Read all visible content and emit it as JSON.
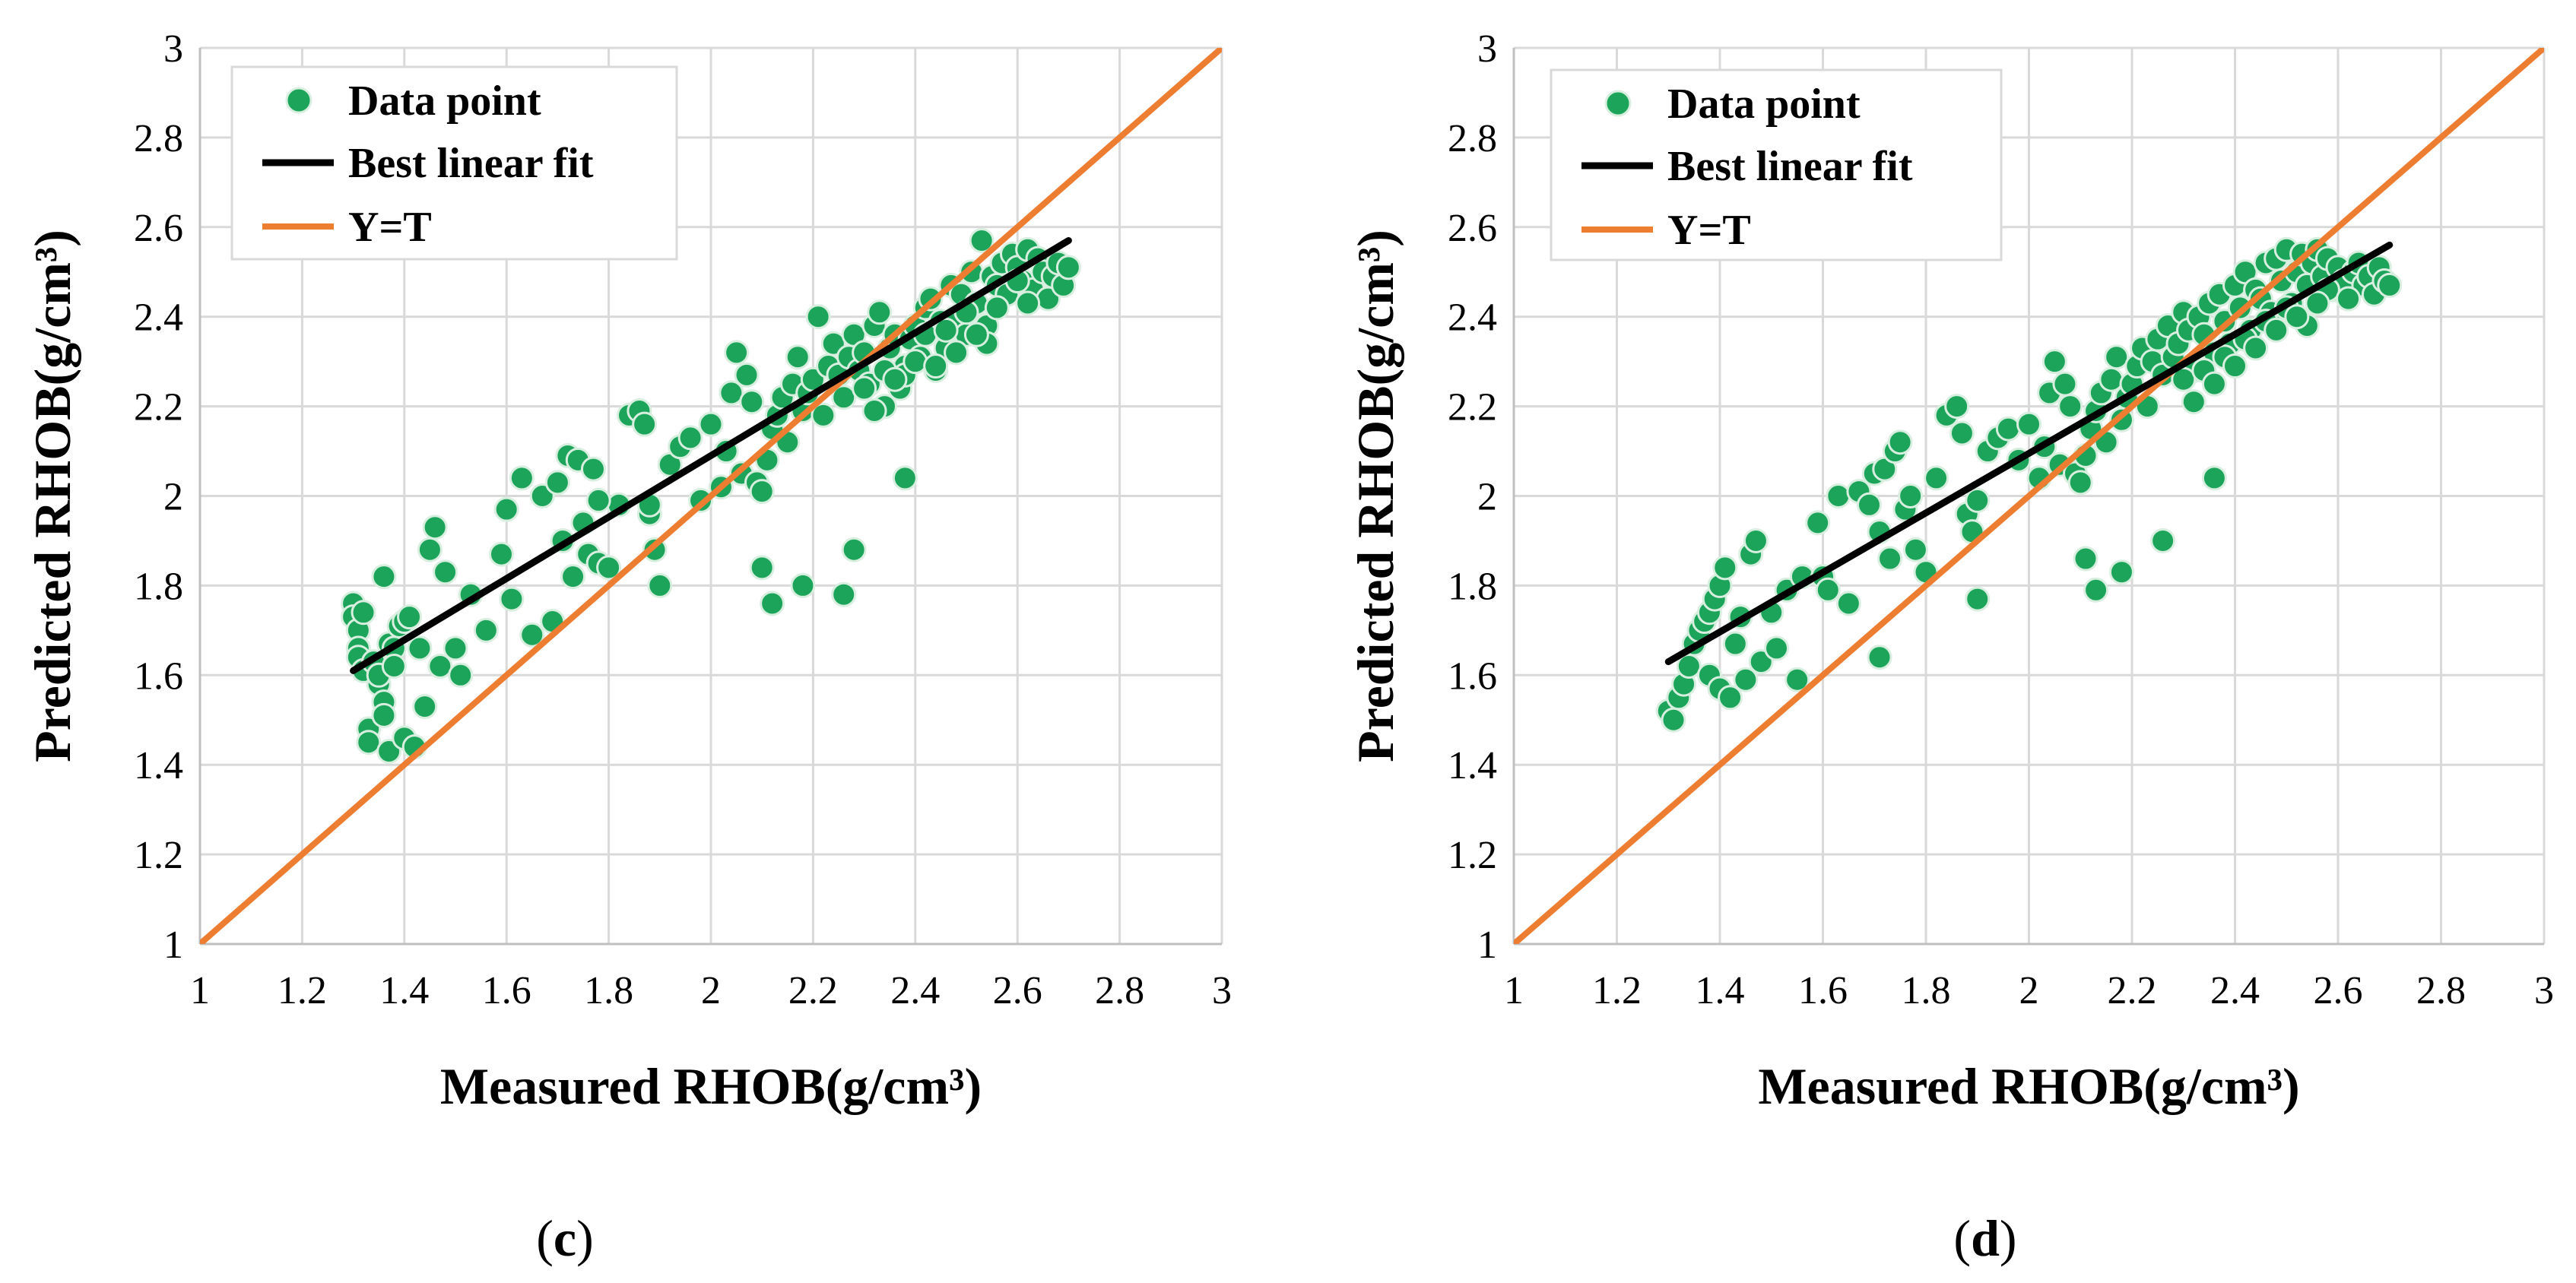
{
  "colors": {
    "points": "#1ca55a",
    "point_edge": "#d8efe0",
    "fit": "#000000",
    "identity": "#ed7d31",
    "grid": "#d9d9d9",
    "axis": "#bfbfbf"
  },
  "chart_data": [
    {
      "type": "scatter",
      "panel_label": "c",
      "xlabel": "Measured RHOB(g/cm³)",
      "ylabel": "Predicted RHOB(g/cm³)",
      "xlim": [
        1,
        3
      ],
      "ylim": [
        1,
        3
      ],
      "xticks": [
        "1",
        "1.2",
        "1.4",
        "1.6",
        "1.8",
        "2",
        "2.2",
        "2.4",
        "2.6",
        "2.8",
        "3"
      ],
      "yticks": [
        "1",
        "1.2",
        "1.4",
        "1.6",
        "1.8",
        "2",
        "2.2",
        "2.4",
        "2.6",
        "2.8",
        "3"
      ],
      "legend": [
        "Data point",
        "Best linear fit",
        "Y=T"
      ],
      "fit_line": {
        "x": [
          1.3,
          2.7
        ],
        "y": [
          1.61,
          2.57
        ]
      },
      "identity_line": {
        "x": [
          1,
          3
        ],
        "y": [
          1,
          3
        ]
      },
      "series": [
        {
          "name": "Data point",
          "x": [
            1.3,
            1.3,
            1.31,
            1.31,
            1.31,
            1.32,
            1.32,
            1.33,
            1.33,
            1.34,
            1.35,
            1.35,
            1.36,
            1.36,
            1.36,
            1.37,
            1.37,
            1.38,
            1.38,
            1.39,
            1.4,
            1.4,
            1.41,
            1.42,
            1.43,
            1.44,
            1.45,
            1.46,
            1.47,
            1.48,
            1.5,
            1.51,
            1.53,
            1.56,
            1.59,
            1.6,
            1.61,
            1.63,
            1.65,
            1.67,
            1.69,
            1.7,
            1.71,
            1.72,
            1.73,
            1.74,
            1.75,
            1.76,
            1.77,
            1.78,
            1.8,
            1.82,
            1.84,
            1.86,
            1.87,
            1.88,
            1.89,
            1.9,
            1.92,
            1.94,
            1.96,
            1.98,
            2.0,
            2.02,
            2.03,
            2.04,
            2.05,
            2.06,
            2.07,
            2.08,
            2.09,
            2.1,
            2.11,
            2.12,
            2.13,
            2.14,
            2.15,
            2.16,
            2.17,
            2.18,
            2.19,
            2.2,
            2.21,
            2.22,
            2.23,
            2.24,
            2.25,
            2.26,
            2.27,
            2.28,
            2.29,
            2.3,
            2.31,
            2.32,
            2.33,
            2.34,
            2.35,
            2.36,
            2.36,
            2.37,
            2.38,
            2.39,
            2.4,
            2.41,
            2.42,
            2.43,
            2.44,
            2.45,
            2.46,
            2.47,
            2.48,
            2.49,
            2.5,
            2.51,
            2.52,
            2.53,
            2.54,
            2.55,
            2.56,
            2.57,
            2.58,
            2.59,
            2.6,
            2.61,
            2.62,
            2.63,
            2.64,
            2.65,
            2.66,
            2.67,
            2.68,
            2.69,
            2.7,
            2.3,
            2.34,
            2.38,
            2.42,
            2.46,
            2.5,
            2.54,
            2.58,
            2.62,
            2.32,
            2.36,
            2.4,
            2.44,
            2.48,
            2.52,
            2.56,
            2.6,
            2.28,
            2.26,
            2.38,
            2.12,
            2.18,
            2.1,
            1.88,
            1.78
          ],
          "y": [
            1.76,
            1.73,
            1.7,
            1.66,
            1.64,
            1.61,
            1.74,
            1.48,
            1.45,
            1.63,
            1.58,
            1.6,
            1.54,
            1.51,
            1.82,
            1.43,
            1.67,
            1.66,
            1.62,
            1.71,
            1.46,
            1.72,
            1.73,
            1.44,
            1.66,
            1.53,
            1.88,
            1.93,
            1.62,
            1.83,
            1.66,
            1.6,
            1.78,
            1.7,
            1.87,
            1.97,
            1.77,
            2.04,
            1.69,
            2.0,
            1.72,
            2.03,
            1.9,
            2.09,
            1.82,
            2.08,
            1.94,
            1.87,
            2.06,
            1.85,
            1.84,
            1.98,
            2.18,
            2.19,
            2.16,
            1.96,
            1.88,
            1.8,
            2.07,
            2.11,
            2.13,
            1.99,
            2.16,
            2.02,
            2.1,
            2.23,
            2.32,
            2.05,
            2.27,
            2.21,
            2.03,
            2.01,
            2.08,
            2.15,
            2.18,
            2.22,
            2.12,
            2.25,
            2.31,
            2.19,
            2.23,
            2.26,
            2.4,
            2.18,
            2.29,
            2.34,
            2.27,
            2.22,
            2.31,
            2.36,
            2.28,
            2.32,
            2.25,
            2.38,
            2.41,
            2.2,
            2.33,
            2.36,
            2.26,
            2.24,
            2.29,
            2.35,
            2.38,
            2.31,
            2.42,
            2.44,
            2.28,
            2.39,
            2.33,
            2.47,
            2.4,
            2.45,
            2.36,
            2.5,
            2.43,
            2.57,
            2.38,
            2.49,
            2.47,
            2.52,
            2.45,
            2.54,
            2.51,
            2.48,
            2.55,
            2.46,
            2.53,
            2.5,
            2.44,
            2.49,
            2.52,
            2.47,
            2.51,
            2.24,
            2.28,
            2.27,
            2.36,
            2.37,
            2.41,
            2.34,
            2.45,
            2.43,
            2.19,
            2.26,
            2.3,
            2.29,
            2.32,
            2.36,
            2.42,
            2.48,
            1.88,
            1.78,
            2.04,
            1.76,
            1.8,
            1.84,
            1.98,
            1.99
          ]
        }
      ]
    },
    {
      "type": "scatter",
      "panel_label": "d",
      "xlabel": "Measured RHOB(g/cm³)",
      "ylabel": "Predicted RHOB(g/cm³)",
      "xlim": [
        1,
        3
      ],
      "ylim": [
        1,
        3
      ],
      "xticks": [
        "1",
        "1.2",
        "1.4",
        "1.6",
        "1.8",
        "2",
        "2.2",
        "2.4",
        "2.6",
        "2.8",
        "3"
      ],
      "yticks": [
        "1",
        "1.2",
        "1.4",
        "1.6",
        "1.8",
        "2",
        "2.2",
        "2.4",
        "2.6",
        "2.8",
        "3"
      ],
      "legend": [
        "Data point",
        "Best linear fit",
        "Y=T"
      ],
      "fit_line": {
        "x": [
          1.3,
          2.7
        ],
        "y": [
          1.63,
          2.56
        ]
      },
      "identity_line": {
        "x": [
          1,
          3
        ],
        "y": [
          1,
          3
        ]
      },
      "series": [
        {
          "name": "Data point",
          "x": [
            1.3,
            1.31,
            1.32,
            1.33,
            1.34,
            1.35,
            1.36,
            1.37,
            1.38,
            1.38,
            1.39,
            1.4,
            1.4,
            1.41,
            1.42,
            1.43,
            1.44,
            1.45,
            1.46,
            1.47,
            1.48,
            1.5,
            1.51,
            1.53,
            1.56,
            1.59,
            1.6,
            1.61,
            1.63,
            1.65,
            1.67,
            1.69,
            1.7,
            1.71,
            1.72,
            1.73,
            1.74,
            1.75,
            1.76,
            1.77,
            1.78,
            1.8,
            1.82,
            1.84,
            1.86,
            1.87,
            1.88,
            1.89,
            1.9,
            1.92,
            1.94,
            1.96,
            1.98,
            2.0,
            2.02,
            2.03,
            2.04,
            2.05,
            2.06,
            2.07,
            2.08,
            2.09,
            2.1,
            2.11,
            2.12,
            2.13,
            2.14,
            2.15,
            2.16,
            2.17,
            2.18,
            2.19,
            2.2,
            2.21,
            2.22,
            2.23,
            2.24,
            2.25,
            2.26,
            2.27,
            2.28,
            2.29,
            2.3,
            2.31,
            2.32,
            2.33,
            2.34,
            2.35,
            2.36,
            2.37,
            2.38,
            2.39,
            2.4,
            2.41,
            2.42,
            2.43,
            2.44,
            2.45,
            2.46,
            2.47,
            2.48,
            2.49,
            2.5,
            2.51,
            2.52,
            2.53,
            2.54,
            2.55,
            2.56,
            2.57,
            2.58,
            2.59,
            2.6,
            2.61,
            2.62,
            2.63,
            2.64,
            2.65,
            2.66,
            2.67,
            2.68,
            2.69,
            2.7,
            2.3,
            2.34,
            2.38,
            2.42,
            2.46,
            2.5,
            2.54,
            2.58,
            2.62,
            2.32,
            2.36,
            2.4,
            2.44,
            2.48,
            2.52,
            2.56,
            2.36,
            2.26,
            2.13,
            2.18,
            2.11,
            1.71,
            1.55,
            1.9
          ],
          "y": [
            1.52,
            1.5,
            1.55,
            1.58,
            1.62,
            1.67,
            1.7,
            1.72,
            1.6,
            1.74,
            1.77,
            1.8,
            1.57,
            1.84,
            1.55,
            1.67,
            1.73,
            1.59,
            1.87,
            1.9,
            1.63,
            1.74,
            1.66,
            1.79,
            1.82,
            1.94,
            1.82,
            1.79,
            2.0,
            1.76,
            2.01,
            1.98,
            2.05,
            1.92,
            2.06,
            1.86,
            2.1,
            2.12,
            1.97,
            2.0,
            1.88,
            1.83,
            2.04,
            2.18,
            2.2,
            2.14,
            1.96,
            1.92,
            1.77,
            2.1,
            2.13,
            2.15,
            2.08,
            2.16,
            2.04,
            2.11,
            2.23,
            2.3,
            2.07,
            2.25,
            2.2,
            2.05,
            2.03,
            2.09,
            2.15,
            2.19,
            2.23,
            2.12,
            2.26,
            2.31,
            2.17,
            2.22,
            2.25,
            2.29,
            2.33,
            2.2,
            2.3,
            2.35,
            2.27,
            2.38,
            2.31,
            2.34,
            2.41,
            2.37,
            2.28,
            2.4,
            2.36,
            2.43,
            2.32,
            2.45,
            2.39,
            2.34,
            2.47,
            2.42,
            2.5,
            2.37,
            2.46,
            2.44,
            2.52,
            2.41,
            2.53,
            2.48,
            2.55,
            2.43,
            2.5,
            2.54,
            2.47,
            2.52,
            2.55,
            2.49,
            2.53,
            2.46,
            2.51,
            2.48,
            2.44,
            2.5,
            2.52,
            2.47,
            2.49,
            2.45,
            2.51,
            2.48,
            2.47,
            2.26,
            2.28,
            2.31,
            2.35,
            2.39,
            2.42,
            2.38,
            2.46,
            2.44,
            2.21,
            2.25,
            2.29,
            2.33,
            2.37,
            2.4,
            2.43,
            2.04,
            1.9,
            1.79,
            1.83,
            1.86,
            1.64,
            1.59,
            1.99
          ]
        }
      ]
    }
  ]
}
